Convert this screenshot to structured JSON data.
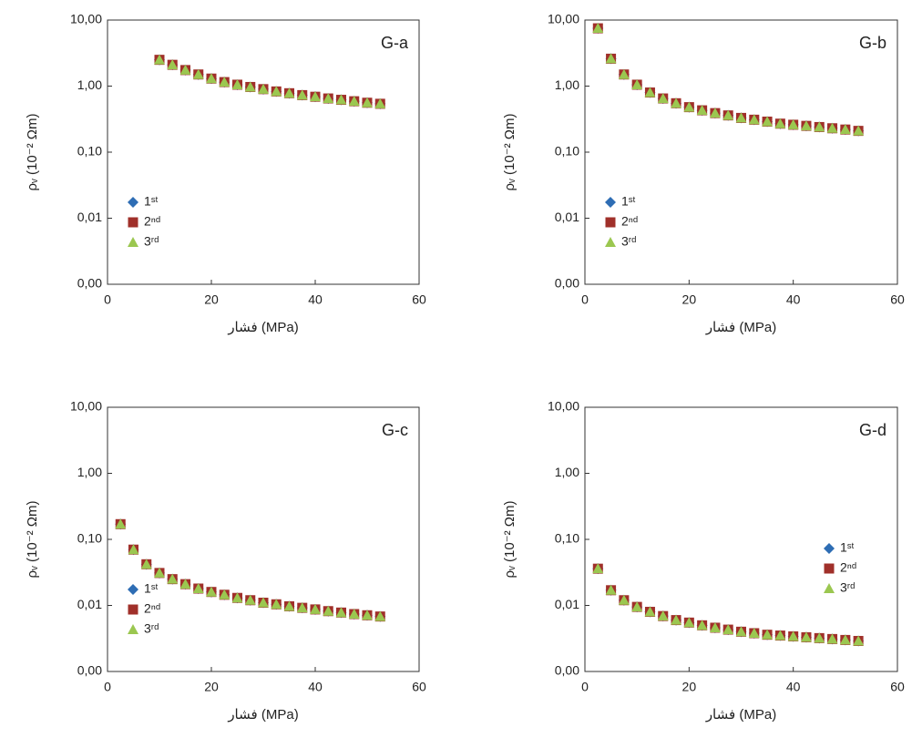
{
  "chart_data": [
    {
      "type": "scatter",
      "title": "G-a",
      "xlabel": "فشار (MPa)",
      "ylabel": "ρᵥ (10⁻² Ωm)",
      "log_scale": true,
      "legend": "lower left",
      "xlim": [
        0,
        60
      ],
      "xticks": [
        0,
        20,
        40,
        60
      ],
      "ylim": [
        0.001,
        10
      ],
      "yticks": [
        {
          "value": 0.001,
          "label": "0,00"
        },
        {
          "value": 0.01,
          "label": "0,01"
        },
        {
          "value": 0.1,
          "label": "0,10"
        },
        {
          "value": 1,
          "label": "1,00"
        },
        {
          "value": 10,
          "label": "10,00"
        }
      ],
      "x": [
        10,
        12.5,
        15,
        17.5,
        20,
        22.5,
        25,
        27.5,
        30,
        32.5,
        35,
        37.5,
        40,
        42.5,
        45,
        47.5,
        50,
        52.5
      ],
      "series": [
        {
          "name": "1ˢᵗ",
          "color": "#2e6db4",
          "marker": "diamond",
          "values": [
            2.5,
            2.1,
            1.75,
            1.5,
            1.3,
            1.15,
            1.05,
            0.97,
            0.9,
            0.83,
            0.78,
            0.73,
            0.69,
            0.65,
            0.62,
            0.59,
            0.56,
            0.54
          ]
        },
        {
          "name": "2ⁿᵈ",
          "color": "#a0302a",
          "marker": "square",
          "values": [
            2.5,
            2.1,
            1.75,
            1.5,
            1.3,
            1.15,
            1.05,
            0.97,
            0.9,
            0.83,
            0.78,
            0.73,
            0.69,
            0.65,
            0.62,
            0.59,
            0.56,
            0.54
          ]
        },
        {
          "name": "3ʳᵈ",
          "color": "#9bc750",
          "marker": "triangle",
          "values": [
            2.5,
            2.1,
            1.75,
            1.5,
            1.3,
            1.15,
            1.05,
            0.97,
            0.9,
            0.83,
            0.78,
            0.73,
            0.69,
            0.65,
            0.62,
            0.59,
            0.56,
            0.54
          ]
        }
      ]
    },
    {
      "type": "scatter",
      "title": "G-b",
      "xlabel": "فشار (MPa)",
      "ylabel": "ρᵥ (10⁻² Ωm)",
      "log_scale": true,
      "legend": "lower left",
      "xlim": [
        0,
        60
      ],
      "xticks": [
        0,
        20,
        40,
        60
      ],
      "ylim": [
        0.001,
        10
      ],
      "yticks": [
        {
          "value": 0.001,
          "label": "0,00"
        },
        {
          "value": 0.01,
          "label": "0,01"
        },
        {
          "value": 0.1,
          "label": "0,10"
        },
        {
          "value": 1,
          "label": "1,00"
        },
        {
          "value": 10,
          "label": "10,00"
        }
      ],
      "x": [
        2.5,
        5,
        7.5,
        10,
        12.5,
        15,
        17.5,
        20,
        22.5,
        25,
        27.5,
        30,
        32.5,
        35,
        37.5,
        40,
        42.5,
        45,
        47.5,
        50,
        52.5
      ],
      "series": [
        {
          "name": "1ˢᵗ",
          "color": "#2e6db4",
          "marker": "diamond",
          "values": [
            7.5,
            2.6,
            1.5,
            1.05,
            0.8,
            0.65,
            0.55,
            0.48,
            0.43,
            0.39,
            0.36,
            0.33,
            0.31,
            0.29,
            0.27,
            0.26,
            0.25,
            0.24,
            0.23,
            0.22,
            0.21
          ]
        },
        {
          "name": "2ⁿᵈ",
          "color": "#a0302a",
          "marker": "square",
          "values": [
            7.5,
            2.6,
            1.5,
            1.05,
            0.8,
            0.65,
            0.55,
            0.48,
            0.43,
            0.39,
            0.36,
            0.33,
            0.31,
            0.29,
            0.27,
            0.26,
            0.25,
            0.24,
            0.23,
            0.22,
            0.21
          ]
        },
        {
          "name": "3ʳᵈ",
          "color": "#9bc750",
          "marker": "triangle",
          "values": [
            7.5,
            2.6,
            1.5,
            1.05,
            0.8,
            0.65,
            0.55,
            0.48,
            0.43,
            0.39,
            0.36,
            0.33,
            0.31,
            0.29,
            0.27,
            0.26,
            0.25,
            0.24,
            0.23,
            0.22,
            0.21
          ]
        }
      ]
    },
    {
      "type": "scatter",
      "title": "G-c",
      "xlabel": "فشار (MPa)",
      "ylabel": "ρᵥ (10⁻² Ωm)",
      "log_scale": true,
      "legend": "lower left",
      "xlim": [
        0,
        60
      ],
      "xticks": [
        0,
        20,
        40,
        60
      ],
      "ylim": [
        0.001,
        10
      ],
      "yticks": [
        {
          "value": 0.001,
          "label": "0,00"
        },
        {
          "value": 0.01,
          "label": "0,01"
        },
        {
          "value": 0.1,
          "label": "0,10"
        },
        {
          "value": 1,
          "label": "1,00"
        },
        {
          "value": 10,
          "label": "10,00"
        }
      ],
      "x": [
        2.5,
        5,
        7.5,
        10,
        12.5,
        15,
        17.5,
        20,
        22.5,
        25,
        27.5,
        30,
        32.5,
        35,
        37.5,
        40,
        42.5,
        45,
        47.5,
        50,
        52.5
      ],
      "series": [
        {
          "name": "1ˢᵗ",
          "color": "#2e6db4",
          "marker": "diamond",
          "values": [
            0.17,
            0.07,
            0.042,
            0.031,
            0.025,
            0.021,
            0.018,
            0.016,
            0.0145,
            0.013,
            0.012,
            0.011,
            0.0104,
            0.0097,
            0.0092,
            0.0087,
            0.0082,
            0.0078,
            0.0074,
            0.0071,
            0.0068
          ]
        },
        {
          "name": "2ⁿᵈ",
          "color": "#a0302a",
          "marker": "square",
          "values": [
            0.17,
            0.07,
            0.042,
            0.031,
            0.025,
            0.021,
            0.018,
            0.016,
            0.0145,
            0.013,
            0.012,
            0.011,
            0.0104,
            0.0097,
            0.0092,
            0.0087,
            0.0082,
            0.0078,
            0.0074,
            0.0071,
            0.0068
          ]
        },
        {
          "name": "3ʳᵈ",
          "color": "#9bc750",
          "marker": "triangle",
          "values": [
            0.17,
            0.07,
            0.042,
            0.031,
            0.025,
            0.021,
            0.018,
            0.016,
            0.0145,
            0.013,
            0.012,
            0.011,
            0.0104,
            0.0097,
            0.0092,
            0.0087,
            0.0082,
            0.0078,
            0.0074,
            0.0071,
            0.0068
          ]
        }
      ]
    },
    {
      "type": "scatter",
      "title": "G-d",
      "xlabel": "فشار (MPa)",
      "ylabel": "ρᵥ (10⁻² Ωm)",
      "log_scale": true,
      "legend": "center right",
      "xlim": [
        0,
        60
      ],
      "xticks": [
        0,
        20,
        40,
        60
      ],
      "ylim": [
        0.001,
        10
      ],
      "yticks": [
        {
          "value": 0.001,
          "label": "0,00"
        },
        {
          "value": 0.01,
          "label": "0,01"
        },
        {
          "value": 0.1,
          "label": "0,10"
        },
        {
          "value": 1,
          "label": "1,00"
        },
        {
          "value": 10,
          "label": "10,00"
        }
      ],
      "x": [
        2.5,
        5,
        7.5,
        10,
        12.5,
        15,
        17.5,
        20,
        22.5,
        25,
        27.5,
        30,
        32.5,
        35,
        37.5,
        40,
        42.5,
        45,
        47.5,
        50,
        52.5
      ],
      "series": [
        {
          "name": "1ˢᵗ",
          "color": "#2e6db4",
          "marker": "diamond",
          "values": [
            0.036,
            0.017,
            0.012,
            0.0095,
            0.008,
            0.0069,
            0.006,
            0.0055,
            0.005,
            0.0046,
            0.0043,
            0.004,
            0.0038,
            0.0036,
            0.0035,
            0.0034,
            0.0033,
            0.0032,
            0.0031,
            0.003,
            0.0029
          ]
        },
        {
          "name": "2ⁿᵈ",
          "color": "#a0302a",
          "marker": "square",
          "values": [
            0.036,
            0.017,
            0.012,
            0.0095,
            0.008,
            0.0069,
            0.006,
            0.0055,
            0.005,
            0.0046,
            0.0043,
            0.004,
            0.0038,
            0.0036,
            0.0035,
            0.0034,
            0.0033,
            0.0032,
            0.0031,
            0.003,
            0.0029
          ]
        },
        {
          "name": "3ʳᵈ",
          "color": "#9bc750",
          "marker": "triangle",
          "values": [
            0.036,
            0.017,
            0.012,
            0.0095,
            0.008,
            0.0069,
            0.006,
            0.0055,
            0.005,
            0.0046,
            0.0043,
            0.004,
            0.0038,
            0.0036,
            0.0035,
            0.0034,
            0.0033,
            0.0032,
            0.0031,
            0.003,
            0.0029
          ]
        }
      ]
    }
  ]
}
